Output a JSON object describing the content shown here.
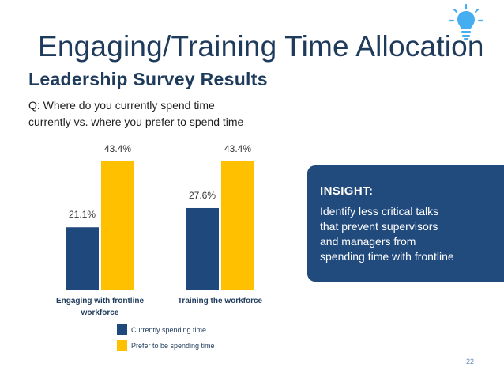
{
  "slide": {
    "title": "Engaging/Training Time Allocation",
    "subtitle": "Leadership Survey Results",
    "question_line1": "Q:  Where do you currently spend time",
    "question_line2": "currently vs. where you prefer to spend time",
    "page_number": "22",
    "icon": "lightbulb-icon"
  },
  "insight": {
    "heading": "INSIGHT:",
    "lines": [
      "Identify less critical talks",
      "that prevent supervisors",
      "and managers from",
      "spending time with frontline"
    ]
  },
  "colors": {
    "title": "#1f3b5c",
    "current": "#1f497d",
    "prefer": "#ffc000",
    "insight_bg": "#214a7d",
    "bulb": "#45aef0"
  },
  "chart_data": {
    "type": "bar",
    "title": "",
    "categories": [
      [
        "Engaging with frontline",
        "workforce"
      ],
      [
        "Training the workforce"
      ]
    ],
    "series": [
      {
        "name": "Currently spending time",
        "values": [
          21.1,
          27.6
        ],
        "labels": [
          "21.1%",
          "27.6%"
        ]
      },
      {
        "name": "Prefer to be spending time",
        "values": [
          43.4,
          43.4
        ],
        "labels": [
          "43.4%",
          "43.4%"
        ]
      }
    ],
    "xlabel": "",
    "ylabel": "",
    "ylim": [
      0,
      50
    ],
    "grid": false,
    "legend": "bottom-center"
  }
}
